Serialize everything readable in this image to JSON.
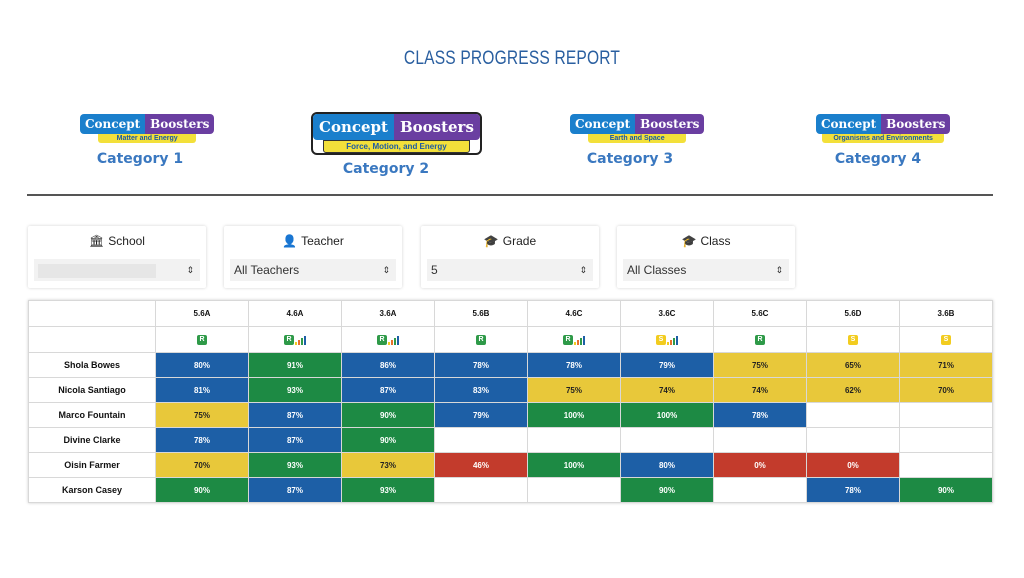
{
  "title": "CLASS PROGRESS REPORT",
  "categories": [
    {
      "label": "Category 1",
      "logo_left": "Concept",
      "logo_right": "Boosters",
      "logo_sub": "Matter and Energy"
    },
    {
      "label": "Category 2",
      "logo_left": "Concept",
      "logo_right": "Boosters",
      "logo_sub": "Force, Motion, and Energy"
    },
    {
      "label": "Category 3",
      "logo_left": "Concept",
      "logo_right": "Boosters",
      "logo_sub": "Earth and Space"
    },
    {
      "label": "Category 4",
      "logo_left": "Concept",
      "logo_right": "Boosters",
      "logo_sub": "Organisms and Environments"
    }
  ],
  "filters": {
    "school": {
      "label": "School",
      "icon": "institution-icon",
      "value": ""
    },
    "teacher": {
      "label": "Teacher",
      "icon": "user-icon",
      "value": "All Teachers"
    },
    "grade": {
      "label": "Grade",
      "icon": "graduation-cap-icon",
      "value": "5"
    },
    "class": {
      "label": "Class",
      "icon": "graduation-cap-icon",
      "value": "All Classes"
    }
  },
  "table": {
    "columns": [
      "5.6A",
      "4.6A",
      "3.6A",
      "5.6B",
      "4.6C",
      "3.6C",
      "5.6C",
      "5.6D",
      "3.6B"
    ],
    "badges": [
      {
        "letter": "R",
        "chart": false
      },
      {
        "letter": "R",
        "chart": true
      },
      {
        "letter": "R",
        "chart": true
      },
      {
        "letter": "R",
        "chart": false
      },
      {
        "letter": "R",
        "chart": true
      },
      {
        "letter": "S",
        "chart": true
      },
      {
        "letter": "R",
        "chart": false
      },
      {
        "letter": "S",
        "chart": false
      },
      {
        "letter": "S",
        "chart": false
      }
    ],
    "colors": {
      "blue": "#1d5fa6",
      "green": "#1d8a44",
      "yellow": "#e8c83a",
      "red": "#c33b2c"
    },
    "rows": [
      {
        "name": "Shola Bowes",
        "cells": [
          {
            "v": "80%",
            "c": "blue"
          },
          {
            "v": "91%",
            "c": "green"
          },
          {
            "v": "86%",
            "c": "blue"
          },
          {
            "v": "78%",
            "c": "blue"
          },
          {
            "v": "78%",
            "c": "blue"
          },
          {
            "v": "79%",
            "c": "blue"
          },
          {
            "v": "75%",
            "c": "yellow"
          },
          {
            "v": "65%",
            "c": "yellow"
          },
          {
            "v": "71%",
            "c": "yellow"
          }
        ]
      },
      {
        "name": "Nicola Santiago",
        "cells": [
          {
            "v": "81%",
            "c": "blue"
          },
          {
            "v": "93%",
            "c": "green"
          },
          {
            "v": "87%",
            "c": "blue"
          },
          {
            "v": "83%",
            "c": "blue"
          },
          {
            "v": "75%",
            "c": "yellow"
          },
          {
            "v": "74%",
            "c": "yellow"
          },
          {
            "v": "74%",
            "c": "yellow"
          },
          {
            "v": "62%",
            "c": "yellow"
          },
          {
            "v": "70%",
            "c": "yellow"
          }
        ]
      },
      {
        "name": "Marco Fountain",
        "cells": [
          {
            "v": "75%",
            "c": "yellow"
          },
          {
            "v": "87%",
            "c": "blue"
          },
          {
            "v": "90%",
            "c": "green"
          },
          {
            "v": "79%",
            "c": "blue"
          },
          {
            "v": "100%",
            "c": "green"
          },
          {
            "v": "100%",
            "c": "green"
          },
          {
            "v": "78%",
            "c": "blue"
          },
          {
            "v": "",
            "c": "empty"
          },
          {
            "v": "",
            "c": "empty"
          }
        ]
      },
      {
        "name": "Divine Clarke",
        "cells": [
          {
            "v": "78%",
            "c": "blue"
          },
          {
            "v": "87%",
            "c": "blue"
          },
          {
            "v": "90%",
            "c": "green"
          },
          {
            "v": "",
            "c": "empty"
          },
          {
            "v": "",
            "c": "empty"
          },
          {
            "v": "",
            "c": "empty"
          },
          {
            "v": "",
            "c": "empty"
          },
          {
            "v": "",
            "c": "empty"
          },
          {
            "v": "",
            "c": "empty"
          }
        ]
      },
      {
        "name": "Oisin Farmer",
        "cells": [
          {
            "v": "70%",
            "c": "yellow"
          },
          {
            "v": "93%",
            "c": "green"
          },
          {
            "v": "73%",
            "c": "yellow"
          },
          {
            "v": "46%",
            "c": "red"
          },
          {
            "v": "100%",
            "c": "green"
          },
          {
            "v": "80%",
            "c": "blue"
          },
          {
            "v": "0%",
            "c": "red"
          },
          {
            "v": "0%",
            "c": "red"
          },
          {
            "v": "",
            "c": "empty"
          }
        ]
      },
      {
        "name": "Karson Casey",
        "cells": [
          {
            "v": "90%",
            "c": "green"
          },
          {
            "v": "87%",
            "c": "blue"
          },
          {
            "v": "93%",
            "c": "green"
          },
          {
            "v": "",
            "c": "empty"
          },
          {
            "v": "",
            "c": "empty"
          },
          {
            "v": "90%",
            "c": "green"
          },
          {
            "v": "",
            "c": "empty"
          },
          {
            "v": "78%",
            "c": "blue"
          },
          {
            "v": "90%",
            "c": "green"
          }
        ]
      }
    ]
  }
}
